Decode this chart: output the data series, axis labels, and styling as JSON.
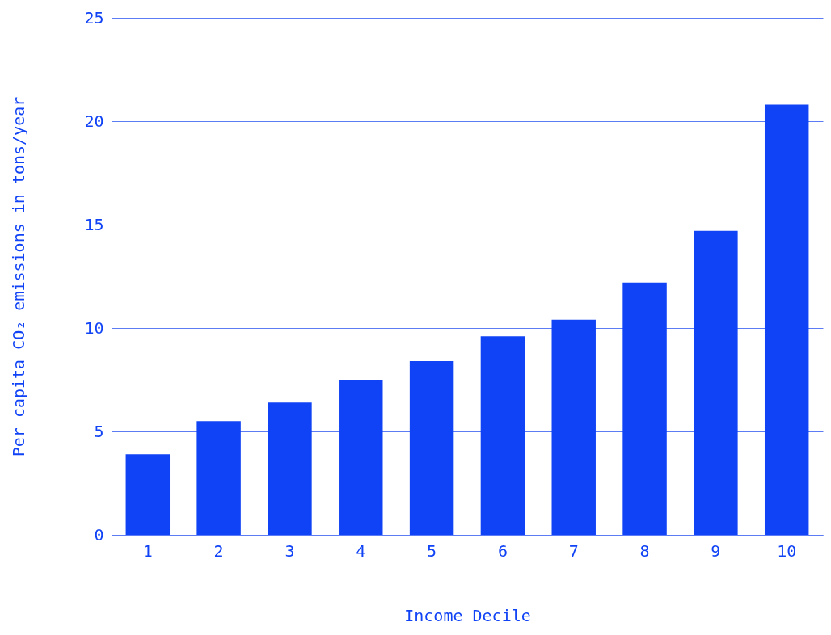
{
  "chart_data": {
    "type": "bar",
    "xlabel": "Income Decile",
    "ylabel": "Per capita CO₂ emissions in tons/year",
    "categories": [
      "1",
      "2",
      "3",
      "4",
      "5",
      "6",
      "7",
      "8",
      "9",
      "10"
    ],
    "values": [
      3.9,
      5.5,
      6.4,
      7.5,
      8.4,
      9.6,
      10.4,
      12.2,
      14.7,
      20.8
    ],
    "color": "#1043f5",
    "ylim": [
      0,
      25
    ],
    "yticks": [
      0,
      5,
      10,
      15,
      20,
      25
    ],
    "grid": "y"
  }
}
